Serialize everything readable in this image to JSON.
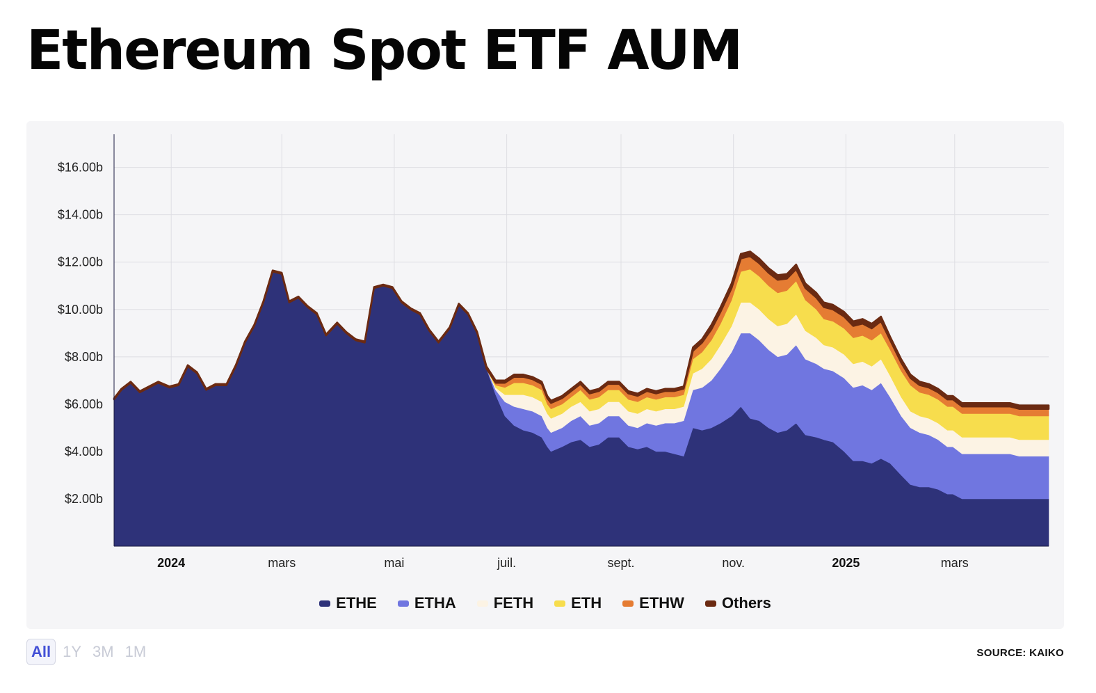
{
  "page": {
    "title": "Ethereum Spot ETF AUM",
    "source": "SOURCE: KAIKO"
  },
  "range_buttons": [
    {
      "label": "All",
      "active": true
    },
    {
      "label": "1Y",
      "active": false
    },
    {
      "label": "3M",
      "active": false
    },
    {
      "label": "1M",
      "active": false
    }
  ],
  "chart_data": {
    "type": "area",
    "stacked": true,
    "title": "Ethereum Spot ETF AUM",
    "xlabel": "",
    "ylabel": "",
    "x_range": [
      "2023-12-01",
      "2025-04-21"
    ],
    "ylim": [
      0,
      17.4
    ],
    "grid": true,
    "legend_position": "bottom",
    "y_ticks": [
      {
        "value": 2,
        "label": "$2.00b"
      },
      {
        "value": 4,
        "label": "$4.00b"
      },
      {
        "value": 6,
        "label": "$6.00b"
      },
      {
        "value": 8,
        "label": "$8.00b"
      },
      {
        "value": 10,
        "label": "$10.00b"
      },
      {
        "value": 12,
        "label": "$12.00b"
      },
      {
        "value": 14,
        "label": "$14.00b"
      },
      {
        "value": 16,
        "label": "$16.00b"
      }
    ],
    "x_ticks": [
      {
        "date": "2024-01-01",
        "label": "2024",
        "bold": true
      },
      {
        "date": "2024-03-01",
        "label": "mars",
        "bold": false
      },
      {
        "date": "2024-05-01",
        "label": "mai",
        "bold": false
      },
      {
        "date": "2024-07-01",
        "label": "juil.",
        "bold": false
      },
      {
        "date": "2024-09-01",
        "label": "sept.",
        "bold": false
      },
      {
        "date": "2024-11-01",
        "label": "nov.",
        "bold": false
      },
      {
        "date": "2025-01-01",
        "label": "2025",
        "bold": true
      },
      {
        "date": "2025-03-01",
        "label": "mars",
        "bold": false
      }
    ],
    "dates": [
      "2023-12-01",
      "2023-12-05",
      "2023-12-10",
      "2023-12-15",
      "2023-12-20",
      "2023-12-25",
      "2023-12-31",
      "2024-01-05",
      "2024-01-10",
      "2024-01-15",
      "2024-01-20",
      "2024-01-25",
      "2024-01-31",
      "2024-02-05",
      "2024-02-10",
      "2024-02-15",
      "2024-02-20",
      "2024-02-25",
      "2024-03-01",
      "2024-03-05",
      "2024-03-10",
      "2024-03-15",
      "2024-03-20",
      "2024-03-25",
      "2024-03-31",
      "2024-04-05",
      "2024-04-10",
      "2024-04-15",
      "2024-04-20",
      "2024-04-25",
      "2024-04-30",
      "2024-05-05",
      "2024-05-10",
      "2024-05-15",
      "2024-05-20",
      "2024-05-25",
      "2024-05-31",
      "2024-06-05",
      "2024-06-10",
      "2024-06-15",
      "2024-06-20",
      "2024-06-25",
      "2024-06-30",
      "2024-07-05",
      "2024-07-10",
      "2024-07-15",
      "2024-07-20",
      "2024-07-23",
      "2024-07-25",
      "2024-07-31",
      "2024-08-05",
      "2024-08-10",
      "2024-08-15",
      "2024-08-20",
      "2024-08-25",
      "2024-08-31",
      "2024-09-05",
      "2024-09-10",
      "2024-09-15",
      "2024-09-20",
      "2024-09-25",
      "2024-09-30",
      "2024-10-05",
      "2024-10-10",
      "2024-10-15",
      "2024-10-20",
      "2024-10-25",
      "2024-10-31",
      "2024-11-05",
      "2024-11-10",
      "2024-11-15",
      "2024-11-20",
      "2024-11-25",
      "2024-11-30",
      "2024-12-05",
      "2024-12-10",
      "2024-12-16",
      "2024-12-20",
      "2024-12-25",
      "2024-12-31",
      "2025-01-05",
      "2025-01-10",
      "2025-01-15",
      "2025-01-20",
      "2025-01-25",
      "2025-01-31",
      "2025-02-05",
      "2025-02-10",
      "2025-02-15",
      "2025-02-20",
      "2025-02-25",
      "2025-02-28",
      "2025-03-05",
      "2025-03-10",
      "2025-03-15",
      "2025-03-20",
      "2025-03-25",
      "2025-03-31",
      "2025-04-05",
      "2025-04-10",
      "2025-04-15",
      "2025-04-21"
    ],
    "series": [
      {
        "name": "ETHE",
        "color": "#2e3279",
        "values": [
          6.2,
          6.6,
          6.9,
          6.5,
          6.7,
          6.9,
          6.7,
          6.8,
          7.6,
          7.3,
          6.6,
          6.8,
          6.8,
          7.6,
          8.6,
          9.3,
          10.3,
          11.6,
          11.5,
          10.3,
          10.5,
          10.1,
          9.8,
          8.9,
          9.4,
          9.0,
          8.7,
          8.6,
          10.9,
          11.0,
          10.9,
          10.3,
          10.0,
          9.8,
          9.1,
          8.6,
          9.2,
          10.2,
          9.8,
          9.0,
          7.5,
          6.4,
          5.5,
          5.1,
          4.9,
          4.8,
          4.6,
          4.2,
          4.0,
          4.2,
          4.4,
          4.5,
          4.2,
          4.3,
          4.6,
          4.6,
          4.2,
          4.1,
          4.2,
          4.0,
          4.0,
          3.9,
          3.8,
          5.0,
          4.9,
          5.0,
          5.2,
          5.5,
          5.9,
          5.4,
          5.3,
          5.0,
          4.8,
          4.9,
          5.2,
          4.7,
          4.6,
          4.5,
          4.4,
          4.0,
          3.6,
          3.6,
          3.5,
          3.7,
          3.5,
          3.0,
          2.6,
          2.5,
          2.5,
          2.4,
          2.2,
          2.2,
          2.0,
          2.0,
          2.0,
          2.0,
          2.0,
          2.0,
          2.0,
          2.0,
          2.0,
          2.0
        ]
      },
      {
        "name": "ETHA",
        "color": "#7076e0",
        "values": [
          0,
          0,
          0,
          0,
          0,
          0,
          0,
          0,
          0,
          0,
          0,
          0,
          0,
          0,
          0,
          0,
          0,
          0,
          0,
          0,
          0,
          0,
          0,
          0,
          0,
          0,
          0,
          0,
          0,
          0,
          0,
          0,
          0,
          0,
          0,
          0,
          0,
          0,
          0,
          0,
          0,
          0.2,
          0.6,
          0.8,
          0.9,
          0.9,
          0.9,
          0.8,
          0.8,
          0.8,
          0.9,
          1.0,
          0.9,
          0.9,
          0.9,
          0.9,
          0.9,
          0.9,
          1.0,
          1.1,
          1.2,
          1.3,
          1.5,
          1.6,
          1.8,
          2.0,
          2.3,
          2.7,
          3.1,
          3.6,
          3.4,
          3.3,
          3.2,
          3.2,
          3.3,
          3.2,
          3.1,
          3.0,
          3.0,
          3.1,
          3.1,
          3.2,
          3.1,
          3.2,
          2.8,
          2.5,
          2.4,
          2.3,
          2.2,
          2.1,
          2.0,
          2.0,
          1.9,
          1.9,
          1.9,
          1.9,
          1.9,
          1.9,
          1.8,
          1.8,
          1.8,
          1.8
        ]
      },
      {
        "name": "FETH",
        "color": "#fcf3e4",
        "values": [
          0,
          0,
          0,
          0,
          0,
          0,
          0,
          0,
          0,
          0,
          0,
          0,
          0,
          0,
          0,
          0,
          0,
          0,
          0,
          0,
          0,
          0,
          0,
          0,
          0,
          0,
          0,
          0,
          0,
          0,
          0,
          0,
          0,
          0,
          0,
          0,
          0,
          0,
          0,
          0,
          0,
          0.1,
          0.3,
          0.5,
          0.6,
          0.6,
          0.6,
          0.6,
          0.6,
          0.6,
          0.6,
          0.6,
          0.6,
          0.6,
          0.6,
          0.6,
          0.6,
          0.6,
          0.6,
          0.6,
          0.6,
          0.6,
          0.6,
          0.7,
          0.8,
          0.9,
          1.0,
          1.1,
          1.3,
          1.3,
          1.3,
          1.3,
          1.3,
          1.3,
          1.3,
          1.2,
          1.1,
          1.0,
          1.0,
          1.0,
          1.0,
          1.0,
          1.0,
          1.0,
          0.9,
          0.8,
          0.7,
          0.7,
          0.7,
          0.7,
          0.7,
          0.7,
          0.7,
          0.7,
          0.7,
          0.7,
          0.7,
          0.7,
          0.7,
          0.7,
          0.7,
          0.7
        ]
      },
      {
        "name": "ETH",
        "color": "#f7dd4d",
        "values": [
          0,
          0,
          0,
          0,
          0,
          0,
          0,
          0,
          0,
          0,
          0,
          0,
          0,
          0,
          0,
          0,
          0,
          0,
          0,
          0,
          0,
          0,
          0,
          0,
          0,
          0,
          0,
          0,
          0,
          0,
          0,
          0,
          0,
          0,
          0,
          0,
          0,
          0,
          0,
          0,
          0,
          0.1,
          0.3,
          0.5,
          0.5,
          0.5,
          0.5,
          0.4,
          0.4,
          0.4,
          0.4,
          0.5,
          0.5,
          0.5,
          0.5,
          0.5,
          0.5,
          0.5,
          0.5,
          0.5,
          0.5,
          0.5,
          0.5,
          0.6,
          0.7,
          0.8,
          0.9,
          1.1,
          1.3,
          1.4,
          1.4,
          1.4,
          1.4,
          1.4,
          1.4,
          1.3,
          1.2,
          1.1,
          1.1,
          1.1,
          1.1,
          1.1,
          1.1,
          1.1,
          1.1,
          1.1,
          1.1,
          1.0,
          1.0,
          1.0,
          1.0,
          1.0,
          1.0,
          1.0,
          1.0,
          1.0,
          1.0,
          1.0,
          1.0,
          1.0,
          1.0,
          1.0
        ]
      },
      {
        "name": "ETHW",
        "color": "#e57c33",
        "values": [
          0,
          0,
          0,
          0,
          0,
          0,
          0,
          0,
          0,
          0,
          0,
          0,
          0,
          0,
          0,
          0,
          0,
          0,
          0,
          0,
          0,
          0,
          0,
          0,
          0,
          0,
          0,
          0,
          0,
          0,
          0,
          0,
          0,
          0,
          0,
          0,
          0,
          0,
          0,
          0,
          0,
          0.1,
          0.2,
          0.25,
          0.25,
          0.25,
          0.25,
          0.25,
          0.25,
          0.25,
          0.25,
          0.25,
          0.25,
          0.25,
          0.25,
          0.25,
          0.25,
          0.25,
          0.25,
          0.25,
          0.25,
          0.25,
          0.25,
          0.35,
          0.4,
          0.45,
          0.5,
          0.5,
          0.55,
          0.55,
          0.55,
          0.55,
          0.55,
          0.5,
          0.5,
          0.5,
          0.5,
          0.5,
          0.5,
          0.5,
          0.5,
          0.5,
          0.5,
          0.5,
          0.4,
          0.35,
          0.3,
          0.3,
          0.3,
          0.3,
          0.3,
          0.3,
          0.3,
          0.3,
          0.3,
          0.3,
          0.3,
          0.3,
          0.3,
          0.3,
          0.3,
          0.3
        ]
      },
      {
        "name": "Others",
        "color": "#6b2a12",
        "values": [
          0.05,
          0.05,
          0.05,
          0.05,
          0.05,
          0.05,
          0.05,
          0.05,
          0.05,
          0.05,
          0.05,
          0.05,
          0.05,
          0.05,
          0.05,
          0.05,
          0.05,
          0.05,
          0.05,
          0.05,
          0.05,
          0.05,
          0.05,
          0.05,
          0.05,
          0.05,
          0.05,
          0.05,
          0.05,
          0.05,
          0.05,
          0.05,
          0.05,
          0.05,
          0.05,
          0.05,
          0.05,
          0.05,
          0.05,
          0.05,
          0.1,
          0.1,
          0.1,
          0.1,
          0.1,
          0.1,
          0.1,
          0.1,
          0.1,
          0.1,
          0.1,
          0.1,
          0.1,
          0.1,
          0.1,
          0.1,
          0.1,
          0.1,
          0.1,
          0.1,
          0.1,
          0.1,
          0.1,
          0.15,
          0.15,
          0.2,
          0.2,
          0.2,
          0.2,
          0.2,
          0.2,
          0.2,
          0.2,
          0.2,
          0.2,
          0.2,
          0.2,
          0.2,
          0.2,
          0.2,
          0.2,
          0.2,
          0.2,
          0.2,
          0.15,
          0.15,
          0.15,
          0.15,
          0.15,
          0.15,
          0.15,
          0.15,
          0.15,
          0.15,
          0.15,
          0.15,
          0.15,
          0.15,
          0.15,
          0.15,
          0.15,
          0.15
        ]
      }
    ]
  }
}
